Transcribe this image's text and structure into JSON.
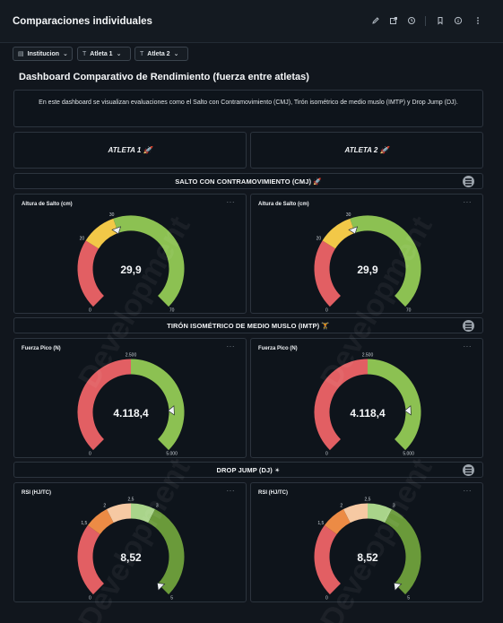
{
  "header": {
    "title": "Comparaciones individuales"
  },
  "filters": [
    {
      "label": "Institucion",
      "icon": "calendar-icon"
    },
    {
      "label": "Atleta 1",
      "icon": "text-icon"
    },
    {
      "label": "Atleta 2",
      "icon": "text-icon"
    }
  ],
  "page_title": "Dashboard Comparativo de Rendimiento (fuerza entre atletas)",
  "description": "En este dashboard se visualizan evaluaciones como el Salto con Contramovimiento (CMJ), Tirón isométrico de medio muslo (IMTP) y Drop Jump (DJ).",
  "athletes": [
    "ATLETA 1 🚀",
    "ATLETA 2 🚀"
  ],
  "watermark": "Development",
  "sections": [
    {
      "title": "SALTO CON CONTRAMOVIMIENTO (CMJ) 🚀",
      "gauges": [
        {
          "title": "Altura de Salto (cm)",
          "value": 29.9,
          "display": "29,9",
          "min": 0,
          "max": 70,
          "ticks": [
            {
              "v": 0,
              "label": "0"
            },
            {
              "v": 20,
              "label": "20"
            },
            {
              "v": 30,
              "label": "30"
            },
            {
              "v": 70,
              "label": "70"
            }
          ],
          "bands": [
            {
              "from": 0,
              "to": 20,
              "color": "#e25f63"
            },
            {
              "from": 20,
              "to": 30,
              "color": "#f2c848"
            },
            {
              "from": 30,
              "to": 70,
              "color": "#8cc152"
            }
          ]
        },
        {
          "title": "Altura de Salto (cm)",
          "value": 29.9,
          "display": "29,9",
          "min": 0,
          "max": 70,
          "ticks": [
            {
              "v": 0,
              "label": "0"
            },
            {
              "v": 20,
              "label": "20"
            },
            {
              "v": 30,
              "label": "30"
            },
            {
              "v": 70,
              "label": "70"
            }
          ],
          "bands": [
            {
              "from": 0,
              "to": 20,
              "color": "#e25f63"
            },
            {
              "from": 20,
              "to": 30,
              "color": "#f2c848"
            },
            {
              "from": 30,
              "to": 70,
              "color": "#8cc152"
            }
          ]
        }
      ]
    },
    {
      "title": "TIRÓN ISOMÉTRICO DE MEDIO MUSLO (IMTP) 🏋",
      "gauges": [
        {
          "title": "Fuerza Pico (N)",
          "value": 4118.4,
          "display": "4.118,4",
          "min": 0,
          "max": 5000,
          "ticks": [
            {
              "v": 0,
              "label": "0"
            },
            {
              "v": 2500,
              "label": "2.500"
            },
            {
              "v": 5000,
              "label": "5.000"
            }
          ],
          "bands": [
            {
              "from": 0,
              "to": 2500,
              "color": "#e25f63"
            },
            {
              "from": 2500,
              "to": 5000,
              "color": "#8cc152"
            }
          ]
        },
        {
          "title": "Fuerza Pico (N)",
          "value": 4118.4,
          "display": "4.118,4",
          "min": 0,
          "max": 5000,
          "ticks": [
            {
              "v": 0,
              "label": "0"
            },
            {
              "v": 2500,
              "label": "2.500"
            },
            {
              "v": 5000,
              "label": "5.000"
            }
          ],
          "bands": [
            {
              "from": 0,
              "to": 2500,
              "color": "#e25f63"
            },
            {
              "from": 2500,
              "to": 5000,
              "color": "#8cc152"
            }
          ]
        }
      ]
    },
    {
      "title": "DROP JUMP (DJ) ✴",
      "gauges": [
        {
          "title": "RSI (HJ/TC)",
          "value": 8.52,
          "display": "8,52",
          "min": 0,
          "max": 5,
          "ticks": [
            {
              "v": 0,
              "label": "0"
            },
            {
              "v": 1.5,
              "label": "1,5"
            },
            {
              "v": 2,
              "label": "2"
            },
            {
              "v": 2.5,
              "label": "2,5"
            },
            {
              "v": 3,
              "label": "3"
            },
            {
              "v": 5,
              "label": "5"
            }
          ],
          "bands": [
            {
              "from": 0,
              "to": 1.5,
              "color": "#e25f63"
            },
            {
              "from": 1.5,
              "to": 2,
              "color": "#ec8b45"
            },
            {
              "from": 2,
              "to": 2.5,
              "color": "#f6c9a3"
            },
            {
              "from": 2.5,
              "to": 3,
              "color": "#a9d48a"
            },
            {
              "from": 3,
              "to": 5,
              "color": "#6a9a3a"
            }
          ]
        },
        {
          "title": "RSI (HJ/TC)",
          "value": 8.52,
          "display": "8,52",
          "min": 0,
          "max": 5,
          "ticks": [
            {
              "v": 0,
              "label": "0"
            },
            {
              "v": 1.5,
              "label": "1,5"
            },
            {
              "v": 2,
              "label": "2"
            },
            {
              "v": 2.5,
              "label": "2,5"
            },
            {
              "v": 3,
              "label": "3"
            },
            {
              "v": 5,
              "label": "5"
            }
          ],
          "bands": [
            {
              "from": 0,
              "to": 1.5,
              "color": "#e25f63"
            },
            {
              "from": 1.5,
              "to": 2,
              "color": "#ec8b45"
            },
            {
              "from": 2,
              "to": 2.5,
              "color": "#f6c9a3"
            },
            {
              "from": 2.5,
              "to": 3,
              "color": "#a9d48a"
            },
            {
              "from": 3,
              "to": 5,
              "color": "#6a9a3a"
            }
          ]
        }
      ]
    }
  ]
}
